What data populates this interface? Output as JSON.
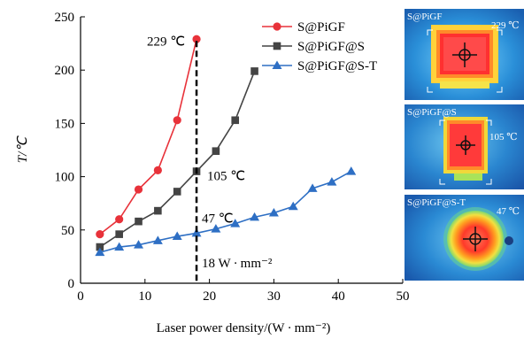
{
  "chart_data": {
    "type": "line",
    "xlabel": "Laser power density/(W · mm⁻²)",
    "ylabel": "T/℃",
    "xlim": [
      0,
      50
    ],
    "ylim": [
      0,
      250
    ],
    "xticks": [
      0,
      10,
      20,
      30,
      40,
      50
    ],
    "yticks": [
      0,
      50,
      100,
      150,
      200,
      250
    ],
    "grid": false,
    "legend_position": "top-right",
    "series": [
      {
        "name": "S@PiGF",
        "color": "#e8323a",
        "marker": "circle",
        "x": [
          3,
          6,
          9,
          12,
          15,
          18
        ],
        "y": [
          46,
          60,
          88,
          106,
          153,
          229
        ]
      },
      {
        "name": "S@PiGF@S",
        "color": "#444444",
        "marker": "square",
        "x": [
          3,
          6,
          9,
          12,
          15,
          18,
          21,
          24,
          27
        ],
        "y": [
          34,
          46,
          58,
          68,
          86,
          105,
          124,
          153,
          199
        ]
      },
      {
        "name": "S@PiGF@S-T",
        "color": "#2e6fc4",
        "marker": "triangle",
        "x": [
          3,
          6,
          9,
          12,
          15,
          18,
          21,
          24,
          27,
          30,
          33,
          36,
          39,
          42
        ],
        "y": [
          29,
          34,
          36,
          40,
          44,
          47,
          51,
          56,
          62,
          66,
          72,
          89,
          95,
          105
        ]
      }
    ],
    "reference_line": {
      "x": 18,
      "label": "18 W · mm⁻²"
    },
    "annotations": [
      {
        "text": "229 ℃",
        "x": 18,
        "y": 229
      },
      {
        "text": "105 ℃",
        "x": 18,
        "y": 105
      },
      {
        "text": "47 ℃",
        "x": 18,
        "y": 47
      }
    ]
  },
  "thermal_images": [
    {
      "label": "S@PiGF",
      "temp": "229 ℃",
      "type": "square",
      "hot": "#ff3030"
    },
    {
      "label": "S@PiGF@S",
      "temp": "105 ℃",
      "type": "square-small",
      "hot": "#ff3a3a"
    },
    {
      "label": "S@PiGF@S-T",
      "temp": "47 ℃",
      "type": "circle",
      "hot": "#ff5a2a"
    }
  ]
}
